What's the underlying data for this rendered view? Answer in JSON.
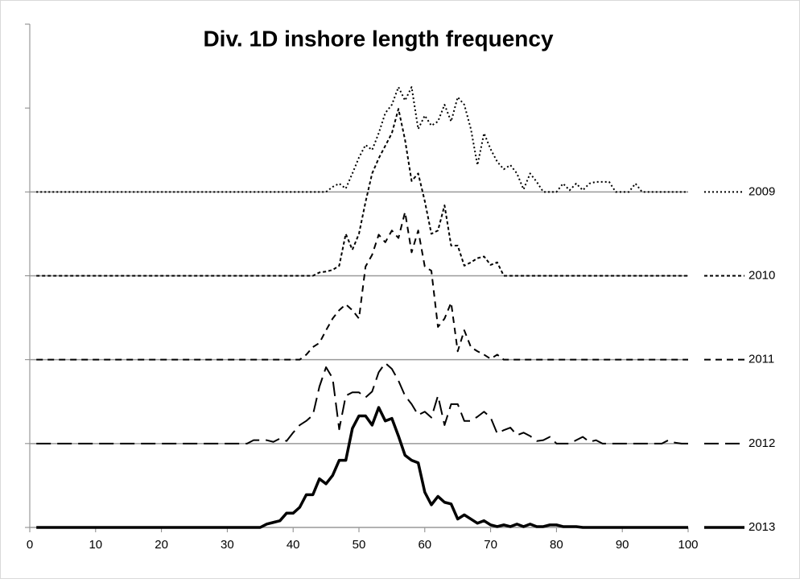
{
  "chart_data": {
    "type": "line",
    "title": "Div. 1D inshore length frequency",
    "x": [
      1,
      2,
      3,
      4,
      5,
      6,
      7,
      8,
      9,
      10,
      11,
      12,
      13,
      14,
      15,
      16,
      17,
      18,
      19,
      20,
      21,
      22,
      23,
      24,
      25,
      26,
      27,
      28,
      29,
      30,
      31,
      32,
      33,
      34,
      35,
      36,
      37,
      38,
      39,
      40,
      41,
      42,
      43,
      44,
      45,
      46,
      47,
      48,
      49,
      50,
      51,
      52,
      53,
      54,
      55,
      56,
      57,
      58,
      59,
      60,
      61,
      62,
      63,
      64,
      65,
      66,
      67,
      68,
      69,
      70,
      71,
      72,
      73,
      74,
      75,
      76,
      77,
      78,
      79,
      80,
      81,
      82,
      83,
      84,
      85,
      86,
      87,
      88,
      89,
      90,
      91,
      92,
      93,
      94,
      95,
      96,
      97,
      98,
      99,
      100
    ],
    "xlim": [
      0,
      100
    ],
    "xticks": [
      0,
      10,
      20,
      30,
      40,
      50,
      60,
      70,
      80,
      90,
      100
    ],
    "ylim": [
      0,
      6
    ],
    "yticks": [
      0,
      1,
      2,
      3,
      4,
      5,
      6
    ],
    "series": [
      {
        "name": "2009",
        "color": "#000000",
        "baseline": 4,
        "dash": "2 3",
        "width": 2,
        "values": [
          4,
          4,
          4,
          4,
          4,
          4,
          4,
          4,
          4,
          4,
          4,
          4,
          4,
          4,
          4,
          4,
          4,
          4,
          4,
          4,
          4,
          4,
          4,
          4,
          4,
          4,
          4,
          4,
          4,
          4,
          4,
          4,
          4,
          4,
          4,
          4,
          4,
          4,
          4,
          4,
          4,
          4,
          4,
          4,
          4,
          4.06,
          4.1,
          4.04,
          4.22,
          4.41,
          4.56,
          4.5,
          4.7,
          4.94,
          5.04,
          5.25,
          5.09,
          5.25,
          4.75,
          4.91,
          4.79,
          4.84,
          5.04,
          4.84,
          5.13,
          5.04,
          4.75,
          4.32,
          4.7,
          4.51,
          4.36,
          4.27,
          4.32,
          4.22,
          4.03,
          4.22,
          4.12,
          4,
          4,
          4,
          4.1,
          4.02,
          4.1,
          4.02,
          4.1,
          4.12,
          4.12,
          4.12,
          4,
          4,
          4,
          4.1,
          4,
          4,
          4,
          4,
          4,
          4,
          4,
          4
        ]
      },
      {
        "name": "2010",
        "color": "#000000",
        "baseline": 3,
        "dash": "4 3",
        "width": 2,
        "values": [
          3,
          3,
          3,
          3,
          3,
          3,
          3,
          3,
          3,
          3,
          3,
          3,
          3,
          3,
          3,
          3,
          3,
          3,
          3,
          3,
          3,
          3,
          3,
          3,
          3,
          3,
          3,
          3,
          3,
          3,
          3,
          3,
          3,
          3,
          3,
          3,
          3,
          3,
          3,
          3,
          3,
          3,
          3,
          3.04,
          3.05,
          3.07,
          3.12,
          3.5,
          3.31,
          3.5,
          3.88,
          4.22,
          4.4,
          4.55,
          4.7,
          4.99,
          4.62,
          4.13,
          4.22,
          3.89,
          3.5,
          3.54,
          3.84,
          3.36,
          3.36,
          3.12,
          3.16,
          3.21,
          3.23,
          3.13,
          3.16,
          3,
          3,
          3,
          3,
          3,
          3,
          3,
          3,
          3,
          3,
          3,
          3,
          3,
          3,
          3,
          3,
          3,
          3,
          3,
          3,
          3,
          3,
          3,
          3,
          3,
          3,
          3,
          3,
          3
        ]
      },
      {
        "name": "2011",
        "color": "#000000",
        "baseline": 2,
        "dash": "8 6",
        "width": 2,
        "values": [
          2,
          2,
          2,
          2,
          2,
          2,
          2,
          2,
          2,
          2,
          2,
          2,
          2,
          2,
          2,
          2,
          2,
          2,
          2,
          2,
          2,
          2,
          2,
          2,
          2,
          2,
          2,
          2,
          2,
          2,
          2,
          2,
          2,
          2,
          2,
          2,
          2,
          2,
          2,
          2,
          2,
          2.06,
          2.15,
          2.2,
          2.35,
          2.49,
          2.59,
          2.66,
          2.59,
          2.49,
          3.11,
          3.25,
          3.49,
          3.4,
          3.54,
          3.45,
          3.76,
          3.28,
          3.54,
          3.11,
          3.06,
          2.39,
          2.49,
          2.68,
          2.1,
          2.35,
          2.15,
          2.1,
          2.06,
          2.01,
          2.06,
          2,
          2,
          2,
          2,
          2,
          2,
          2,
          2,
          2,
          2,
          2,
          2,
          2,
          2,
          2,
          2,
          2,
          2,
          2,
          2,
          2,
          2,
          2,
          2,
          2,
          2,
          2,
          2,
          2
        ]
      },
      {
        "name": "2012",
        "color": "#000000",
        "baseline": 1,
        "dash": "18 8",
        "width": 2,
        "values": [
          1,
          1,
          1,
          1,
          1,
          1,
          1,
          1,
          1,
          1,
          1,
          1,
          1,
          1,
          1,
          1,
          1,
          1,
          1,
          1,
          1,
          1,
          1,
          1,
          1,
          1,
          1,
          1,
          1,
          1,
          1,
          1,
          1,
          1.04,
          1.04,
          1.04,
          1.02,
          1.06,
          1.03,
          1.13,
          1.22,
          1.27,
          1.34,
          1.68,
          1.91,
          1.78,
          1.17,
          1.57,
          1.61,
          1.61,
          1.55,
          1.62,
          1.85,
          1.96,
          1.89,
          1.75,
          1.57,
          1.47,
          1.34,
          1.38,
          1.31,
          1.57,
          1.22,
          1.47,
          1.47,
          1.27,
          1.27,
          1.32,
          1.38,
          1.31,
          1.12,
          1.16,
          1.19,
          1.1,
          1.13,
          1.09,
          1.03,
          1.04,
          1.08,
          1,
          1,
          1,
          1.04,
          1.08,
          1.02,
          1.04,
          1,
          1,
          1,
          1,
          1,
          1,
          1,
          1,
          1,
          1,
          1.04,
          1.01,
          1,
          1
        ]
      },
      {
        "name": "2013",
        "color": "#000000",
        "baseline": 0,
        "dash": "none",
        "width": 3.5,
        "values": [
          0,
          0,
          0,
          0,
          0,
          0,
          0,
          0,
          0,
          0,
          0,
          0,
          0,
          0,
          0,
          0,
          0,
          0,
          0,
          0,
          0,
          0,
          0,
          0,
          0,
          0,
          0,
          0,
          0,
          0,
          0,
          0,
          0,
          0,
          0,
          0.04,
          0.06,
          0.08,
          0.17,
          0.17,
          0.24,
          0.39,
          0.39,
          0.58,
          0.52,
          0.62,
          0.8,
          0.8,
          1.18,
          1.33,
          1.33,
          1.22,
          1.43,
          1.27,
          1.3,
          1.09,
          0.86,
          0.8,
          0.77,
          0.42,
          0.27,
          0.37,
          0.3,
          0.28,
          0.1,
          0.15,
          0.1,
          0.05,
          0.08,
          0.03,
          0.01,
          0.03,
          0.01,
          0.04,
          0.01,
          0.04,
          0.01,
          0.01,
          0.03,
          0.03,
          0.01,
          0.01,
          0.01,
          0,
          0,
          0,
          0,
          0,
          0,
          0,
          0,
          0,
          0,
          0,
          0,
          0,
          0,
          0,
          0,
          0
        ]
      }
    ]
  }
}
